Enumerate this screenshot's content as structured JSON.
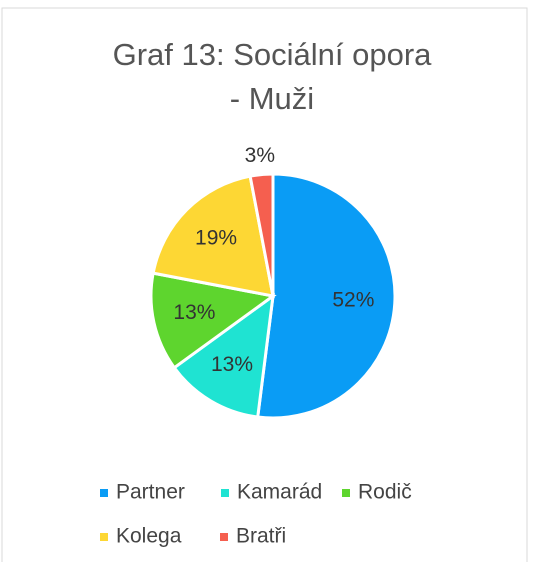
{
  "chart_data": {
    "type": "pie",
    "title": "Graf 13: Sociální opora - Muži",
    "categories": [
      "Partner",
      "Kamarád",
      "Rodič",
      "Kolega",
      "Bratři"
    ],
    "values": [
      52,
      13,
      13,
      19,
      3
    ],
    "value_labels": [
      "52%",
      "13%",
      "13%",
      "19%",
      "3%"
    ],
    "colors": [
      "#0a9cf5",
      "#1fe3d2",
      "#5ed52e",
      "#fdd734",
      "#f55f4f"
    ],
    "legend": "bottom"
  }
}
